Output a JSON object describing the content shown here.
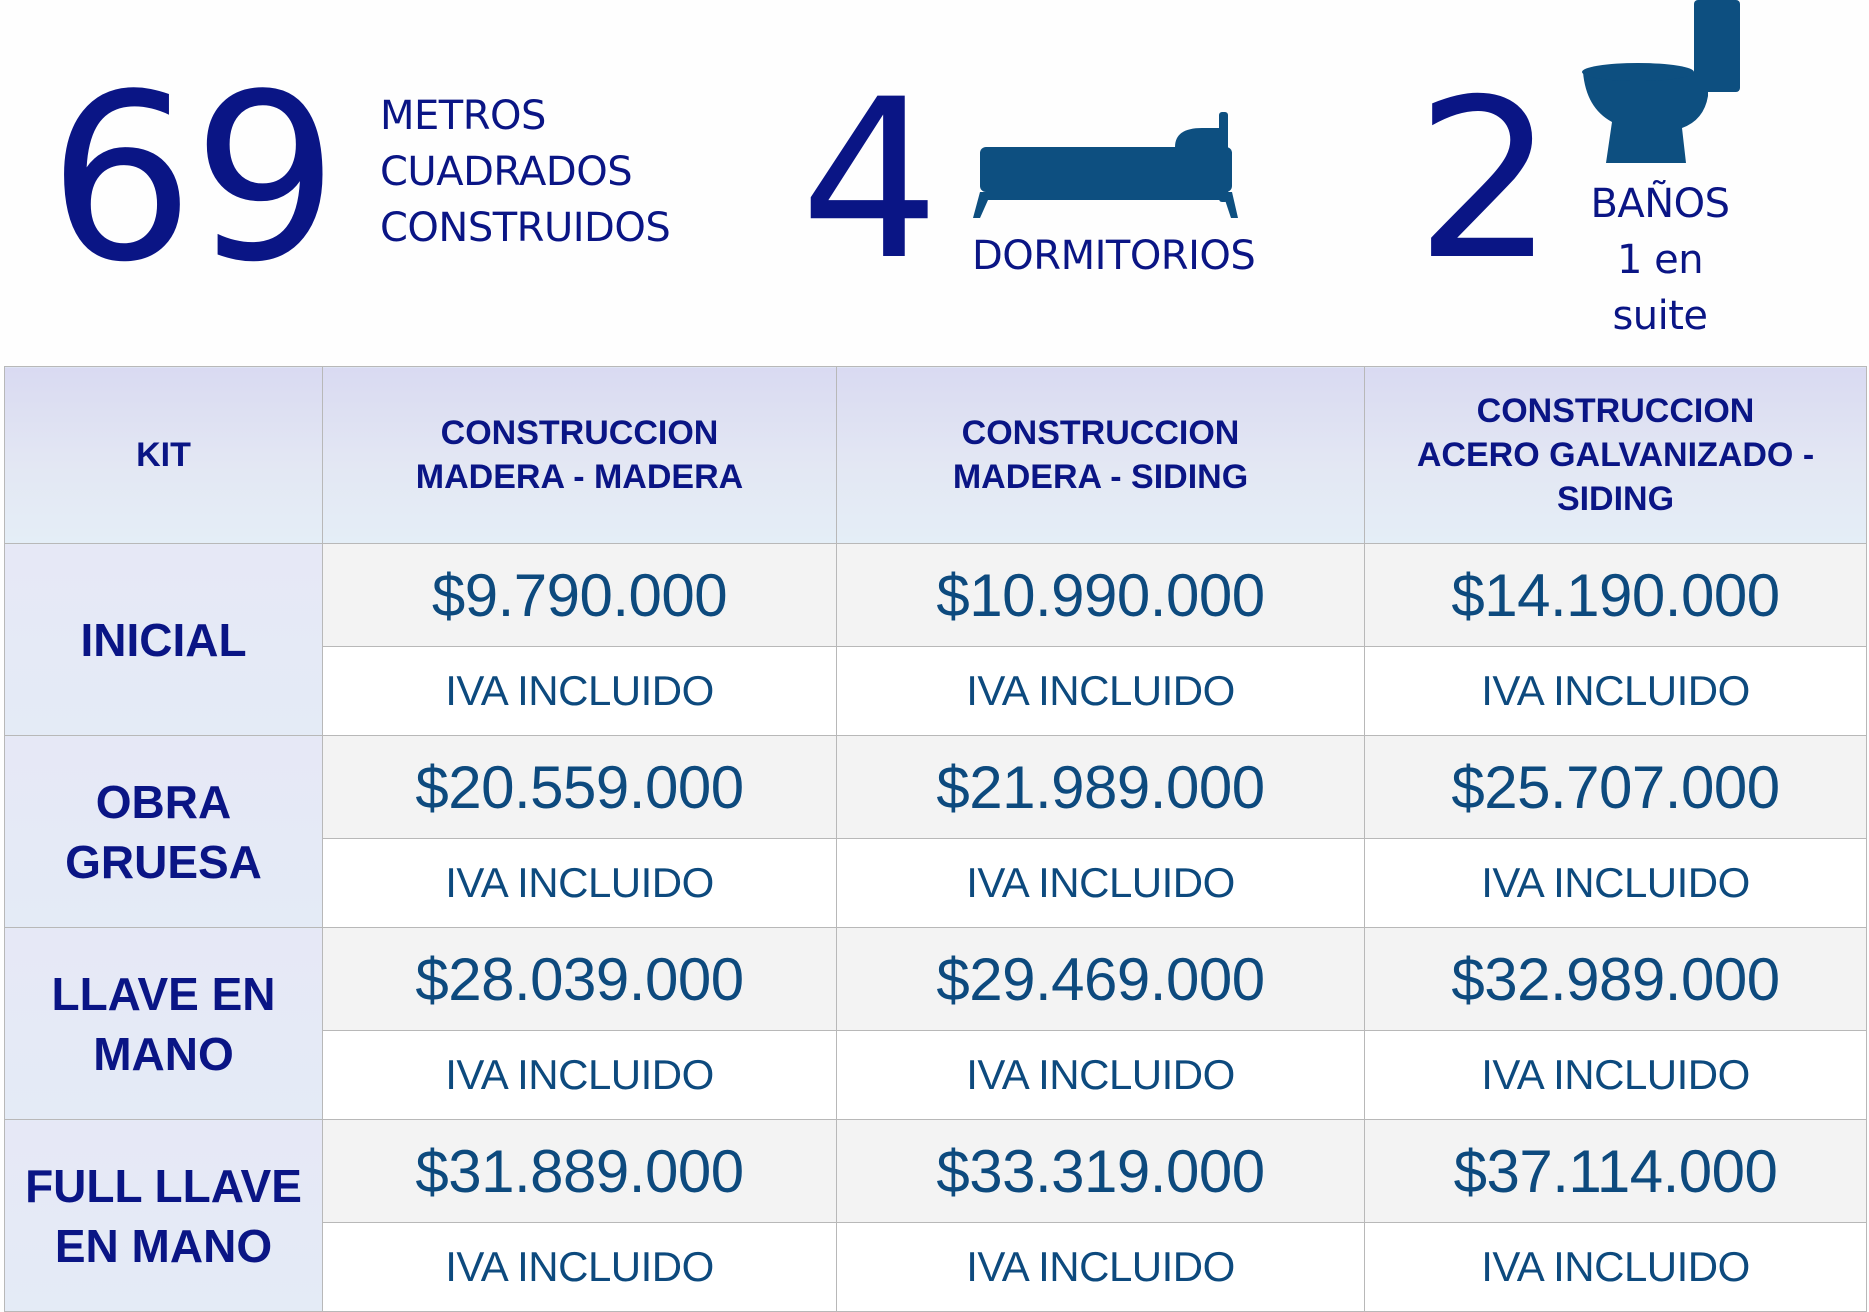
{
  "stats": {
    "area": {
      "value": "69",
      "label_lines": [
        "METROS",
        "CUADRADOS",
        "CONSTRUIDOS"
      ]
    },
    "bedrooms": {
      "value": "4",
      "label": "DORMITORIOS",
      "icon": "bed-icon"
    },
    "bathrooms": {
      "value": "2",
      "label_lines": [
        "BAÑOS",
        "1 en",
        "suite"
      ],
      "icon": "toilet-icon"
    }
  },
  "colors": {
    "number_blue": "#0a1585",
    "icon_blue": "#0d4f80",
    "price_blue": "#0d4a7e",
    "header_bg": "#dcdef3"
  },
  "table": {
    "headers": [
      {
        "lines": [
          "KIT"
        ]
      },
      {
        "lines": [
          "CONSTRUCCION",
          "MADERA - MADERA"
        ]
      },
      {
        "lines": [
          "CONSTRUCCION",
          "MADERA - SIDING"
        ]
      },
      {
        "lines": [
          "CONSTRUCCION",
          "ACERO GALVANIZADO -",
          "SIDING"
        ]
      }
    ],
    "rows": [
      {
        "label_lines": [
          "INICIAL"
        ],
        "prices": [
          "$9.790.000",
          "$10.990.000",
          "$14.190.000"
        ],
        "notes": [
          "IVA INCLUIDO",
          "IVA INCLUIDO",
          "IVA INCLUIDO"
        ]
      },
      {
        "label_lines": [
          "OBRA",
          "GRUESA"
        ],
        "prices": [
          "$20.559.000",
          "$21.989.000",
          "$25.707.000"
        ],
        "notes": [
          "IVA INCLUIDO",
          "IVA INCLUIDO",
          "IVA INCLUIDO"
        ]
      },
      {
        "label_lines": [
          "LLAVE EN",
          "MANO"
        ],
        "prices": [
          "$28.039.000",
          "$29.469.000",
          "$32.989.000"
        ],
        "notes": [
          "IVA INCLUIDO",
          "IVA INCLUIDO",
          "IVA INCLUIDO"
        ]
      },
      {
        "label_lines": [
          "FULL LLAVE",
          "EN MANO"
        ],
        "prices": [
          "$31.889.000",
          "$33.319.000",
          "$37.114.000"
        ],
        "notes": [
          "IVA INCLUIDO",
          "IVA INCLUIDO",
          "IVA INCLUIDO"
        ]
      }
    ]
  }
}
